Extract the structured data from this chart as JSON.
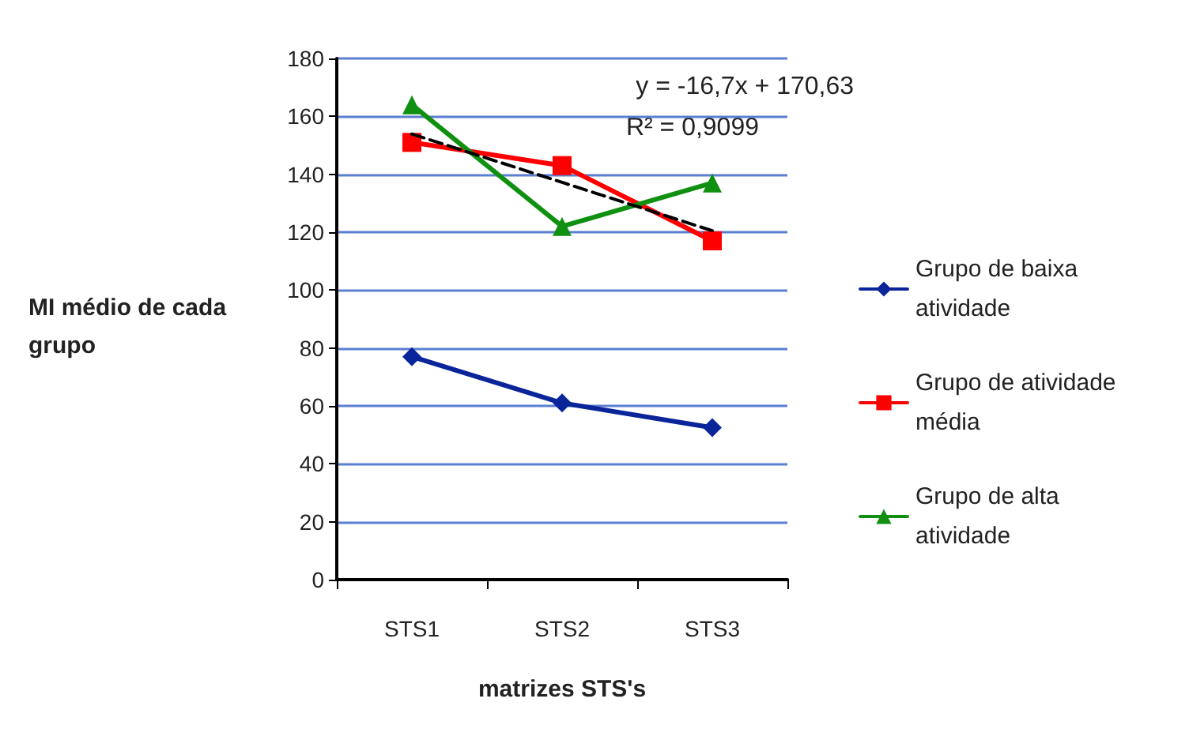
{
  "chart_data": {
    "type": "line",
    "categories": [
      "STS1",
      "STS2",
      "STS3"
    ],
    "xlabel": "matrizes STS's",
    "ylabel": "MI médio de cada grupo",
    "series": [
      {
        "name": "Grupo de baixa atividade",
        "color": "#0a259a",
        "values": [
          77,
          61,
          52.5
        ],
        "marker": "diamond"
      },
      {
        "name": "Grupo de atividade média",
        "color": "#ff0000",
        "values": [
          151,
          143,
          117
        ],
        "marker": "square"
      },
      {
        "name": "Grupo de alta atividade",
        "color": "#109010",
        "values": [
          164,
          122,
          137
        ],
        "marker": "triangle"
      },
      {
        "type": "line",
        "values": [
          153.9,
          137.2,
          120.5
        ],
        "color": "#000000",
        "line_style": "dashed",
        "marker": "none"
      }
    ],
    "ylim": [
      0,
      180
    ],
    "yticks": [
      0,
      20,
      40,
      60,
      80,
      100,
      120,
      140,
      160,
      180
    ],
    "grid": "y",
    "legend": "right",
    "annotations": [
      "y = -16,7x + 170,63",
      "R² = 0,9099"
    ]
  }
}
